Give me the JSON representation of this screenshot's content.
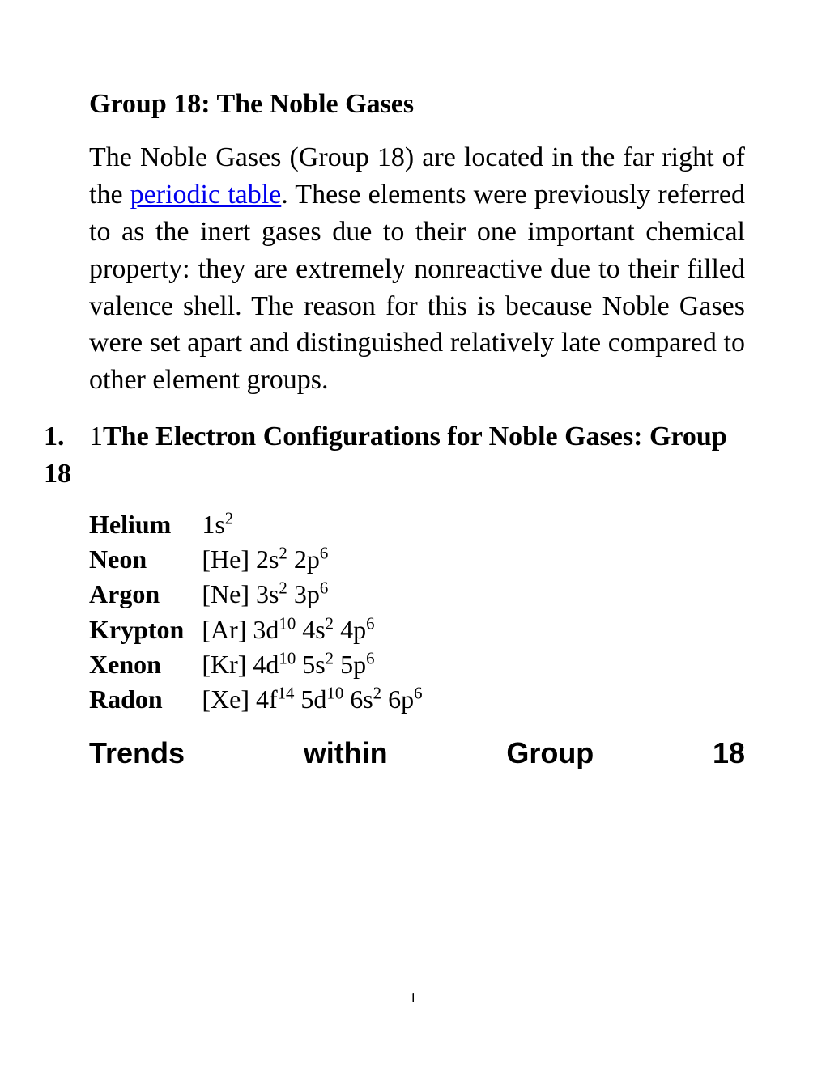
{
  "title": "Group 18: The Noble Gases",
  "para_before_link": "The Noble Gases (Group 18) are located in the far right of the ",
  "link_text": "periodic table",
  "para_after_link": ". These elements were previously referred to as the inert gases due to their one important chemical property: they are extremely nonreactive due to their filled valence shell. The reason for this is because Noble Gases were set apart and distinguished relatively late compared to other element groups.",
  "heading_number": "1.",
  "heading_prefix": "1",
  "heading_text": "The Electron Configurations for Noble Gases: Group 18",
  "elements": [
    {
      "name": "Helium",
      "config": [
        {
          "base": "1s",
          "sup": "2"
        }
      ]
    },
    {
      "name": "Neon",
      "config": [
        {
          "text": "[He] "
        },
        {
          "base": "2s",
          "sup": "2"
        },
        {
          "text": " "
        },
        {
          "base": "2p",
          "sup": "6"
        }
      ]
    },
    {
      "name": "Argon",
      "config": [
        {
          "text": "[Ne] "
        },
        {
          "base": "3s",
          "sup": "2"
        },
        {
          "text": " "
        },
        {
          "base": "3p",
          "sup": "6"
        }
      ]
    },
    {
      "name": "Krypton",
      "config": [
        {
          "text": "[Ar] "
        },
        {
          "base": "3d",
          "sup": "10"
        },
        {
          "text": " "
        },
        {
          "base": "4s",
          "sup": "2"
        },
        {
          "text": " "
        },
        {
          "base": "4p",
          "sup": "6"
        }
      ]
    },
    {
      "name": "Xenon",
      "config": [
        {
          "text": "[Kr] "
        },
        {
          "base": "4d",
          "sup": "10"
        },
        {
          "text": " "
        },
        {
          "base": "5s",
          "sup": "2"
        },
        {
          "text": " "
        },
        {
          "base": "5p",
          "sup": "6"
        }
      ]
    },
    {
      "name": "Radon",
      "config": [
        {
          "text": "[Xe] "
        },
        {
          "base": "4f",
          "sup": "14"
        },
        {
          "text": " "
        },
        {
          "base": "5d",
          "sup": "10"
        },
        {
          "text": " "
        },
        {
          "base": "6s",
          "sup": "2"
        },
        {
          "text": " "
        },
        {
          "base": "6p",
          "sup": "6"
        }
      ]
    }
  ],
  "section_head": "Trends within Group 18",
  "page_number": "1",
  "link_color": "#0000ee"
}
